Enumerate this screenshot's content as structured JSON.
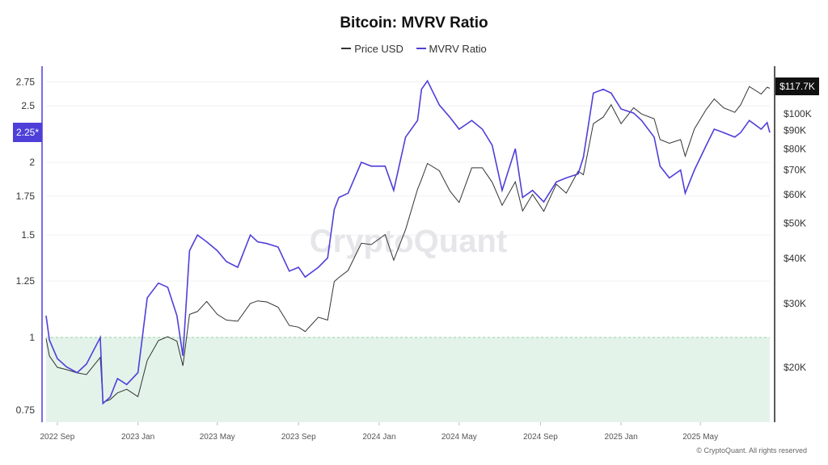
{
  "chart_data": {
    "type": "line",
    "title": "Bitcoin: MVRV Ratio",
    "left_axis": {
      "scale": "log",
      "range": [
        0.72,
        2.85
      ],
      "ticks": [
        0.75,
        1,
        1.25,
        1.5,
        1.75,
        2,
        2.5,
        2.75
      ],
      "tick_labels": [
        "0.75",
        "1",
        "1.25",
        "1.5",
        "1.75",
        "2",
        "2.5",
        "2.75"
      ],
      "color": "#4f3fd9",
      "current_badge": "2.25*"
    },
    "right_axis": {
      "scale": "log",
      "ticks": [
        20000,
        30000,
        40000,
        50000,
        60000,
        70000,
        80000,
        90000,
        100000
      ],
      "tick_labels": [
        "$20K",
        "$30K",
        "$40K",
        "$50K",
        "$60K",
        "$70K",
        "$80K",
        "$90K",
        "$100K"
      ],
      "color": "#111111",
      "current_badge": "$117.7K"
    },
    "x_ticks": [
      {
        "date": "2022-09-01",
        "label": "2022 Sep"
      },
      {
        "date": "2023-01-01",
        "label": "2023 Jan"
      },
      {
        "date": "2023-05-01",
        "label": "2023 May"
      },
      {
        "date": "2023-09-01",
        "label": "2023 Sep"
      },
      {
        "date": "2024-01-01",
        "label": "2024 Jan"
      },
      {
        "date": "2024-05-01",
        "label": "2024 May"
      },
      {
        "date": "2024-09-01",
        "label": "2024 Sep"
      },
      {
        "date": "2025-01-01",
        "label": "2025 Jan"
      },
      {
        "date": "2025-05-01",
        "label": "2025 May"
      }
    ],
    "x_range": [
      "2022-08-15",
      "2025-08-14"
    ],
    "threshold": {
      "value": 1,
      "fill_below": "#e4f3ea",
      "line_color": "#8fd19e"
    },
    "grid": true,
    "legend_placement": "top-center",
    "x": [
      "2022-08-15",
      "2022-08-20",
      "2022-09-01",
      "2022-09-15",
      "2022-10-01",
      "2022-10-15",
      "2022-11-05",
      "2022-11-09",
      "2022-11-20",
      "2022-12-01",
      "2022-12-15",
      "2023-01-01",
      "2023-01-15",
      "2023-02-01",
      "2023-02-15",
      "2023-03-01",
      "2023-03-10",
      "2023-03-20",
      "2023-04-01",
      "2023-04-15",
      "2023-05-01",
      "2023-05-15",
      "2023-06-01",
      "2023-06-20",
      "2023-07-01",
      "2023-07-15",
      "2023-08-01",
      "2023-08-18",
      "2023-09-01",
      "2023-09-11",
      "2023-10-01",
      "2023-10-15",
      "2023-10-25",
      "2023-11-01",
      "2023-11-15",
      "2023-12-05",
      "2023-12-20",
      "2024-01-10",
      "2024-01-23",
      "2024-02-10",
      "2024-02-28",
      "2024-03-05",
      "2024-03-14",
      "2024-04-01",
      "2024-04-17",
      "2024-05-01",
      "2024-05-20",
      "2024-06-05",
      "2024-06-20",
      "2024-07-05",
      "2024-07-25",
      "2024-08-05",
      "2024-08-20",
      "2024-09-06",
      "2024-09-25",
      "2024-10-10",
      "2024-10-28",
      "2024-11-05",
      "2024-11-20",
      "2024-12-05",
      "2024-12-17",
      "2025-01-01",
      "2025-01-20",
      "2025-02-01",
      "2025-02-20",
      "2025-03-01",
      "2025-03-15",
      "2025-04-01",
      "2025-04-08",
      "2025-04-22",
      "2025-05-10",
      "2025-05-22",
      "2025-06-05",
      "2025-06-22",
      "2025-07-01",
      "2025-07-14",
      "2025-08-01",
      "2025-08-10",
      "2025-08-14"
    ],
    "series": [
      {
        "name": "Price USD",
        "axis": "right",
        "color": "#333333",
        "values": [
          24000,
          21500,
          20000,
          19700,
          19300,
          19100,
          21300,
          16000,
          16300,
          17000,
          17400,
          16600,
          20900,
          23700,
          24300,
          23600,
          20200,
          28000,
          28500,
          30400,
          28000,
          27000,
          26800,
          30000,
          30500,
          30300,
          29300,
          26100,
          25800,
          25100,
          27500,
          27000,
          34500,
          35400,
          37000,
          44000,
          43600,
          46500,
          39500,
          48000,
          62000,
          66000,
          73000,
          69700,
          61300,
          57000,
          71000,
          71000,
          64800,
          56000,
          65000,
          54000,
          60000,
          53900,
          64000,
          60500,
          69500,
          68000,
          94000,
          98000,
          106000,
          94000,
          104000,
          100000,
          97000,
          85000,
          83000,
          85000,
          76500,
          91000,
          103000,
          110000,
          104000,
          101000,
          106000,
          119000,
          113500,
          118500,
          117700
        ]
      },
      {
        "name": "MVRV Ratio",
        "axis": "left",
        "color": "#4f3fd9",
        "values": [
          1.09,
          0.99,
          0.92,
          0.89,
          0.87,
          0.9,
          1.0,
          0.77,
          0.79,
          0.85,
          0.83,
          0.87,
          1.17,
          1.24,
          1.22,
          1.09,
          0.93,
          1.41,
          1.5,
          1.46,
          1.41,
          1.35,
          1.32,
          1.5,
          1.46,
          1.45,
          1.43,
          1.3,
          1.32,
          1.27,
          1.32,
          1.37,
          1.66,
          1.74,
          1.77,
          2.0,
          1.97,
          1.97,
          1.79,
          2.21,
          2.36,
          2.67,
          2.76,
          2.51,
          2.39,
          2.28,
          2.36,
          2.28,
          2.14,
          1.79,
          2.11,
          1.74,
          1.79,
          1.71,
          1.85,
          1.88,
          1.91,
          2.04,
          2.63,
          2.67,
          2.63,
          2.47,
          2.43,
          2.36,
          2.21,
          1.97,
          1.88,
          1.94,
          1.77,
          1.94,
          2.14,
          2.28,
          2.25,
          2.21,
          2.25,
          2.36,
          2.28,
          2.34,
          2.25
        ]
      }
    ]
  },
  "watermark": "CryptoQuant",
  "copyright": "© CryptoQuant. All rights reserved"
}
